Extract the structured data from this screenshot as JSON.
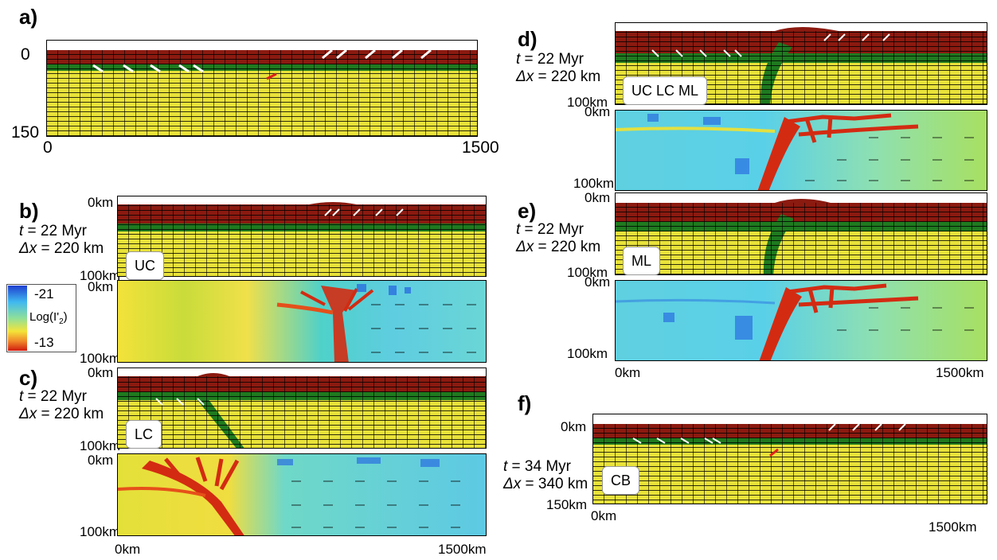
{
  "colors": {
    "upper_crust": "#8b1a10",
    "lower_crust": "#1f7a1f",
    "mantle": "#e8e23a",
    "strain_low": "#2a6fe0",
    "strain_high": "#d32b12"
  },
  "panel_a": {
    "label": "a)",
    "y_top": "0",
    "y_bottom": "150",
    "x_left": "0",
    "x_right": "1500"
  },
  "panel_b": {
    "label": "b)",
    "t_label": "t",
    "t_value": " = 22 Myr",
    "dx_label": "Δx",
    "dx_value": " = 220 km",
    "tag": "UC",
    "y_top": "0km",
    "y_bottom": "100km",
    "y2_top": "0km",
    "y2_bottom": "100km"
  },
  "panel_c": {
    "label": "c)",
    "t_label": "t",
    "t_value": " = 22 Myr",
    "dx_label": "Δx",
    "dx_value": " = 220 km",
    "tag": "LC",
    "y_top": "0km",
    "y_bottom": "100km",
    "y2_top": "0km",
    "y2_bottom": "100km",
    "x_left": "0km",
    "x_right": "1500km"
  },
  "panel_d": {
    "label": "d)",
    "t_label": "t",
    "t_value": " = 22 Myr",
    "dx_label": "Δx",
    "dx_value": " = 220 km",
    "tag": "UC LC ML",
    "y_bottom": "100km",
    "y2_top": "0km",
    "y2_bottom": "100km"
  },
  "panel_e": {
    "label": "e)",
    "t_label": "t",
    "t_value": " = 22 Myr",
    "dx_label": "Δx",
    "dx_value": " = 220 km",
    "tag": "ML",
    "y_top": "0km",
    "y_bottom": "100km",
    "y2_top": "0km",
    "y2_bottom": "100km",
    "x_left": "0km",
    "x_right": "1500km"
  },
  "panel_f": {
    "label": "f)",
    "t_label": "t",
    "t_value": " = 34 Myr",
    "dx_label": "Δx",
    "dx_value": " = 340 km",
    "tag": "CB",
    "y_top": "0km",
    "y_bottom": "150km",
    "x_left": "0km",
    "x_right": "1500km"
  },
  "colorbar": {
    "max": "-21",
    "title_prefix": "Log(I'",
    "title_sub": "2",
    "title_suffix": ")",
    "min": "-13"
  }
}
